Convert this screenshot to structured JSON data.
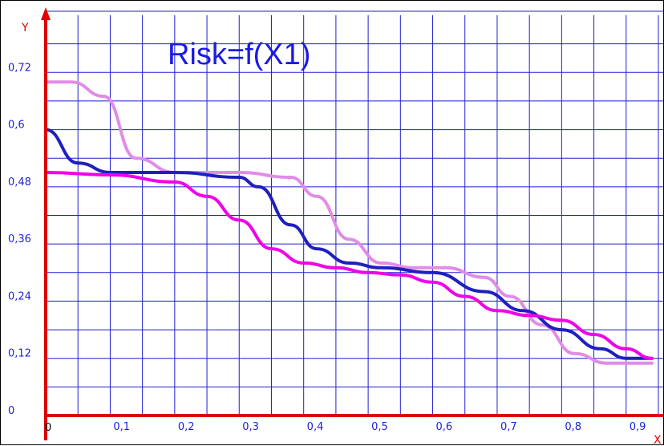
{
  "chart_data": {
    "type": "line",
    "title": "Risk=f(X1)",
    "xlabel": "X",
    "ylabel": "Y",
    "x_origin_label": "0",
    "xlim": [
      0,
      0.95
    ],
    "ylim": [
      0,
      0.84
    ],
    "x_ticks": [
      {
        "value": 0.1,
        "label": "0,1"
      },
      {
        "value": 0.2,
        "label": "0,2"
      },
      {
        "value": 0.3,
        "label": "0,3"
      },
      {
        "value": 0.4,
        "label": "0,4"
      },
      {
        "value": 0.5,
        "label": "0,5"
      },
      {
        "value": 0.6,
        "label": "0,6"
      },
      {
        "value": 0.7,
        "label": "0,7"
      },
      {
        "value": 0.8,
        "label": "0,8"
      },
      {
        "value": 0.9,
        "label": "0,9"
      }
    ],
    "y_ticks": [
      {
        "value": 0,
        "label": "0"
      },
      {
        "value": 0.12,
        "label": "0,12"
      },
      {
        "value": 0.24,
        "label": "0,24"
      },
      {
        "value": 0.36,
        "label": "0,36"
      },
      {
        "value": 0.48,
        "label": "0,48"
      },
      {
        "value": 0.6,
        "label": "0,6"
      },
      {
        "value": 0.72,
        "label": "0,72"
      }
    ],
    "grid": true,
    "legend": "none",
    "colors": {
      "grid": "#1f1fd6",
      "axes": "#e00000",
      "title": "#1a1ae6"
    },
    "series": [
      {
        "color": "#e08ce8",
        "x": [
          0,
          0.04,
          0.09,
          0.14,
          0.2,
          0.25,
          0.3,
          0.38,
          0.42,
          0.47,
          0.52,
          0.57,
          0.62,
          0.68,
          0.72,
          0.77,
          0.82,
          0.87,
          0.94
        ],
        "y": [
          0.7,
          0.7,
          0.67,
          0.54,
          0.51,
          0.51,
          0.51,
          0.5,
          0.46,
          0.37,
          0.32,
          0.31,
          0.31,
          0.29,
          0.25,
          0.19,
          0.13,
          0.11,
          0.11
        ]
      },
      {
        "color": "#1f1fbf",
        "x": [
          0,
          0.05,
          0.1,
          0.2,
          0.3,
          0.33,
          0.38,
          0.42,
          0.47,
          0.52,
          0.6,
          0.68,
          0.74,
          0.8,
          0.86,
          0.9,
          0.94
        ],
        "y": [
          0.6,
          0.53,
          0.51,
          0.51,
          0.5,
          0.48,
          0.4,
          0.35,
          0.32,
          0.31,
          0.3,
          0.26,
          0.22,
          0.18,
          0.14,
          0.12,
          0.12
        ]
      },
      {
        "color": "#f000e8",
        "x": [
          0,
          0.1,
          0.2,
          0.25,
          0.3,
          0.35,
          0.4,
          0.45,
          0.5,
          0.55,
          0.6,
          0.65,
          0.7,
          0.75,
          0.8,
          0.85,
          0.9,
          0.94
        ],
        "y": [
          0.51,
          0.505,
          0.49,
          0.46,
          0.41,
          0.35,
          0.32,
          0.31,
          0.3,
          0.295,
          0.28,
          0.25,
          0.22,
          0.21,
          0.2,
          0.17,
          0.14,
          0.12
        ]
      }
    ]
  }
}
